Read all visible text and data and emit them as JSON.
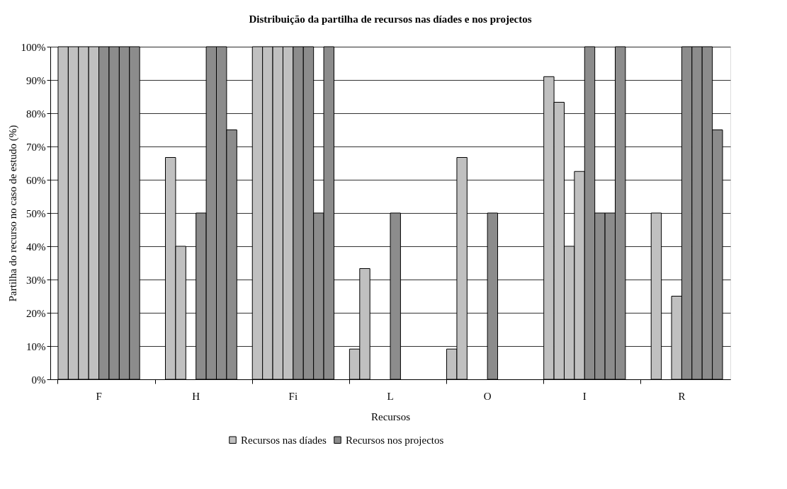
{
  "chart_data": {
    "type": "bar",
    "title": "Distribuição da partilha de recursos nas díades e nos projectos",
    "xlabel": "Recursos",
    "ylabel": "Partilha do recurso no caso de estudo (%)",
    "categories": [
      "F",
      "H",
      "Fi",
      "L",
      "O",
      "I",
      "R"
    ],
    "series": [
      {
        "name": "Recursos nas díades",
        "color": "#c0c0c0",
        "values": [
          100,
          null,
          100,
          9.1,
          9.1,
          91,
          null
        ]
      },
      {
        "color": "#c0c0c0",
        "values": [
          100,
          66.7,
          100,
          33.3,
          66.7,
          83.3,
          50
        ]
      },
      {
        "color": "#c0c0c0",
        "values": [
          100,
          40,
          100,
          null,
          null,
          40,
          null
        ]
      },
      {
        "color": "#c0c0c0",
        "values": [
          100,
          null,
          100,
          null,
          null,
          62.5,
          25
        ]
      },
      {
        "name": "Recursos nos projectos",
        "color": "#8c8c8c",
        "values": [
          100,
          50,
          100,
          50,
          50,
          100,
          100
        ]
      },
      {
        "color": "#8c8c8c",
        "values": [
          100,
          100,
          100,
          null,
          null,
          50,
          100
        ]
      },
      {
        "color": "#8c8c8c",
        "values": [
          100,
          100,
          50,
          null,
          null,
          50,
          100
        ]
      },
      {
        "color": "#8c8c8c",
        "values": [
          100,
          75,
          100,
          null,
          null,
          100,
          75
        ]
      }
    ],
    "ylim": [
      0,
      100
    ],
    "yticks": [
      {
        "value": 0,
        "label": "0%"
      },
      {
        "value": 10,
        "label": "10%"
      },
      {
        "value": 20,
        "label": "20%"
      },
      {
        "value": 30,
        "label": "30%"
      },
      {
        "value": 40,
        "label": "40%"
      },
      {
        "value": 50,
        "label": "50%"
      },
      {
        "value": 60,
        "label": "60%"
      },
      {
        "value": 70,
        "label": "70%"
      },
      {
        "value": 80,
        "label": "80%"
      },
      {
        "value": 90,
        "label": "90%"
      },
      {
        "value": 100,
        "label": "100%"
      }
    ],
    "grid": "y",
    "legend": "bottom"
  }
}
